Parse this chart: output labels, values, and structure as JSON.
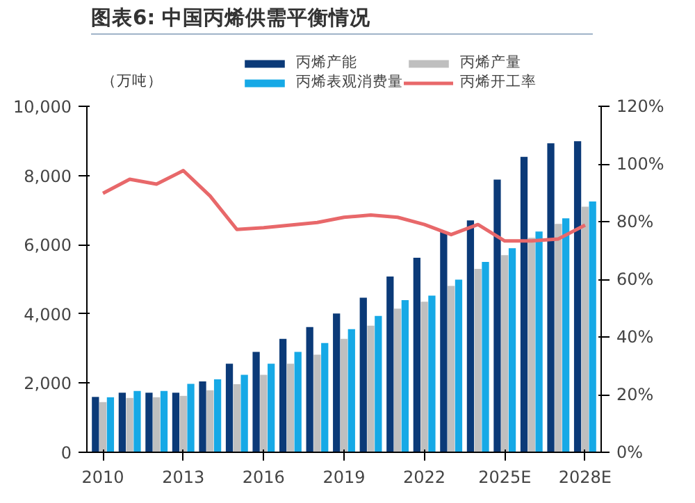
{
  "chart_data": {
    "type": "bar",
    "title": "图表6:  中国丙烯供需平衡情况",
    "ylabel": "（万吨）",
    "categories": [
      "2010",
      null,
      null,
      "2013",
      null,
      null,
      "2016",
      null,
      null,
      "2019",
      null,
      null,
      "2022",
      null,
      null,
      "2025E",
      null,
      null,
      "2028E"
    ],
    "series": [
      {
        "name": "丙烯产能",
        "color": "#0b3a78",
        "values": [
          1600,
          1720,
          1720,
          1720,
          2050,
          2560,
          2900,
          3280,
          3620,
          4010,
          4470,
          5080,
          5620,
          6370,
          6700,
          7880,
          8540,
          8930,
          8990
        ]
      },
      {
        "name": "丙烯产量",
        "color": "#bfbfbf",
        "values": [
          1450,
          1570,
          1590,
          1630,
          1790,
          1970,
          2240,
          2560,
          2820,
          3280,
          3660,
          4150,
          4350,
          4810,
          5300,
          5700,
          6200,
          6600,
          7100
        ]
      },
      {
        "name": "丙烯表观消费量",
        "color": "#16a9e6",
        "values": [
          1590,
          1770,
          1770,
          1980,
          2110,
          2240,
          2560,
          2900,
          3160,
          3560,
          3940,
          4400,
          4530,
          4990,
          5500,
          5900,
          6380,
          6760,
          7250
        ]
      },
      {
        "name": "丙烯开工率",
        "type": "line",
        "axis": "y2",
        "color": "#e8686a",
        "values": [
          89.8,
          94.7,
          93,
          97.7,
          88.9,
          77.3,
          77.9,
          78.8,
          79.7,
          81.5,
          82.3,
          81.5,
          79,
          75.5,
          79,
          73.3,
          73.3,
          74,
          78.8
        ]
      }
    ],
    "ylim": [
      0,
      10000
    ],
    "yticks": [
      {
        "value": 0,
        "label": "0"
      },
      {
        "value": 2000,
        "label": "2,000"
      },
      {
        "value": 4000,
        "label": "4,000"
      },
      {
        "value": 6000,
        "label": "6,000"
      },
      {
        "value": 8000,
        "label": "8,000"
      },
      {
        "value": 10000,
        "label": "10,000"
      }
    ],
    "y2lim": [
      0,
      120
    ],
    "y2ticks": [
      {
        "value": 0,
        "label": "0%"
      },
      {
        "value": 20,
        "label": "20%"
      },
      {
        "value": 40,
        "label": "40%"
      },
      {
        "value": 60,
        "label": "60%"
      },
      {
        "value": 80,
        "label": "80%"
      },
      {
        "value": 100,
        "label": "100%"
      },
      {
        "value": 120,
        "label": "120%"
      }
    ],
    "legend": "top",
    "grid": false
  }
}
